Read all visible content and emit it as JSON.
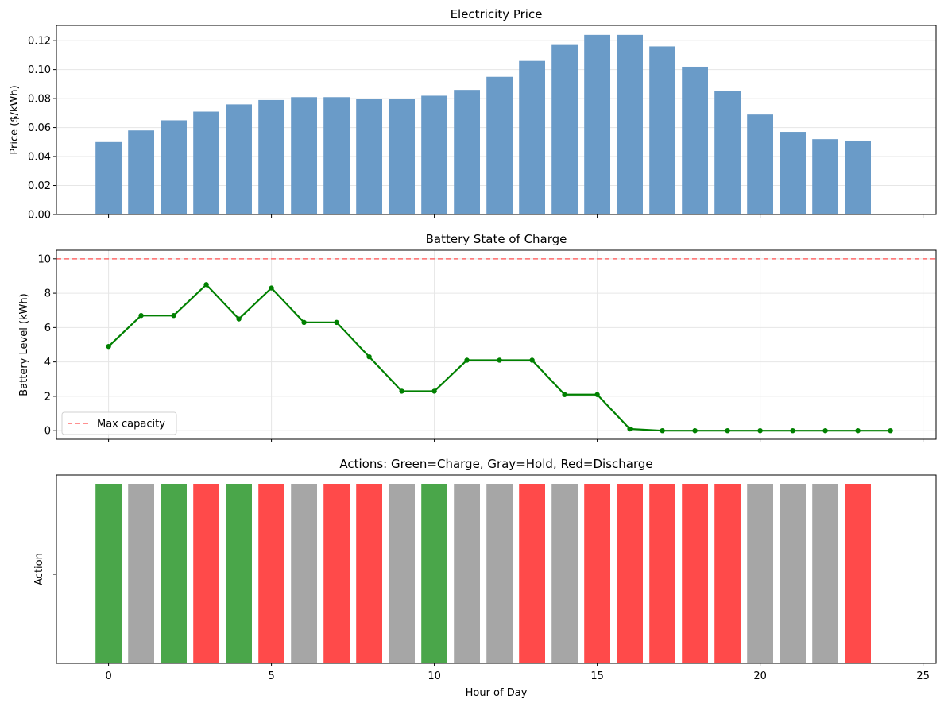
{
  "chart_data": [
    {
      "type": "bar",
      "title": "Electricity Price",
      "xlabel": "",
      "ylabel": "Price ($/kWh)",
      "x": [
        0,
        1,
        2,
        3,
        4,
        5,
        6,
        7,
        8,
        9,
        10,
        11,
        12,
        13,
        14,
        15,
        16,
        17,
        18,
        19,
        20,
        21,
        22,
        23
      ],
      "values": [
        0.05,
        0.058,
        0.065,
        0.071,
        0.076,
        0.079,
        0.081,
        0.081,
        0.08,
        0.08,
        0.082,
        0.086,
        0.095,
        0.106,
        0.117,
        0.124,
        0.124,
        0.116,
        0.102,
        0.085,
        0.069,
        0.057,
        0.052,
        0.051
      ],
      "xlim": [
        -1.6,
        25.4
      ],
      "ylim": [
        0,
        0.1305
      ],
      "yticks": [
        "0.00",
        "0.02",
        "0.04",
        "0.06",
        "0.08",
        "0.10",
        "0.12"
      ],
      "ytick_values": [
        0,
        0.02,
        0.04,
        0.06,
        0.08,
        0.1,
        0.12
      ],
      "grid": "y",
      "color": "#6a9bc8"
    },
    {
      "type": "line",
      "title": "Battery State of Charge",
      "xlabel": "",
      "ylabel": "Battery Level (kWh)",
      "x": [
        0,
        1,
        2,
        3,
        4,
        5,
        6,
        7,
        8,
        9,
        10,
        11,
        12,
        13,
        14,
        15,
        16,
        17,
        18,
        19,
        20,
        21,
        22,
        23,
        24
      ],
      "values": [
        4.9,
        6.7,
        6.7,
        8.5,
        6.5,
        8.3,
        6.3,
        6.3,
        4.3,
        2.3,
        2.3,
        4.1,
        4.1,
        4.1,
        2.1,
        2.1,
        0.1,
        0.0,
        0.0,
        0.0,
        0.0,
        0.0,
        0.0,
        0.0,
        0.0
      ],
      "xlim": [
        -1.6,
        25.4
      ],
      "ylim": [
        -0.5,
        10.5
      ],
      "yticks": [
        "0",
        "2",
        "4",
        "6",
        "8",
        "10"
      ],
      "ytick_values": [
        0,
        2,
        4,
        6,
        8,
        10
      ],
      "reference_line": {
        "y": 10,
        "label": "Max capacity",
        "color": "#ff6b6b"
      },
      "legend_placement": "lower-left",
      "grid": "both",
      "color": "#008000"
    },
    {
      "type": "bar",
      "title": "Actions: Green=Charge, Gray=Hold, Red=Discharge",
      "xlabel": "Hour of Day",
      "ylabel": "Action",
      "x": [
        0,
        1,
        2,
        3,
        4,
        5,
        6,
        7,
        8,
        9,
        10,
        11,
        12,
        13,
        14,
        15,
        16,
        17,
        18,
        19,
        20,
        21,
        22,
        23
      ],
      "actions": [
        "Charge",
        "Hold",
        "Charge",
        "Discharge",
        "Charge",
        "Discharge",
        "Hold",
        "Discharge",
        "Discharge",
        "Hold",
        "Charge",
        "Hold",
        "Hold",
        "Discharge",
        "Hold",
        "Discharge",
        "Discharge",
        "Discharge",
        "Discharge",
        "Discharge",
        "Hold",
        "Hold",
        "Hold",
        "Discharge"
      ],
      "action_colors": {
        "Charge": "#4aa64a",
        "Hold": "#a6a6a6",
        "Discharge": "#ff4a4a"
      },
      "xlim": [
        -1.6,
        25.4
      ],
      "xticks": [
        "0",
        "5",
        "10",
        "15",
        "20",
        "25"
      ],
      "xtick_values": [
        0,
        5,
        10,
        15,
        20,
        25
      ],
      "grid": "none"
    }
  ]
}
